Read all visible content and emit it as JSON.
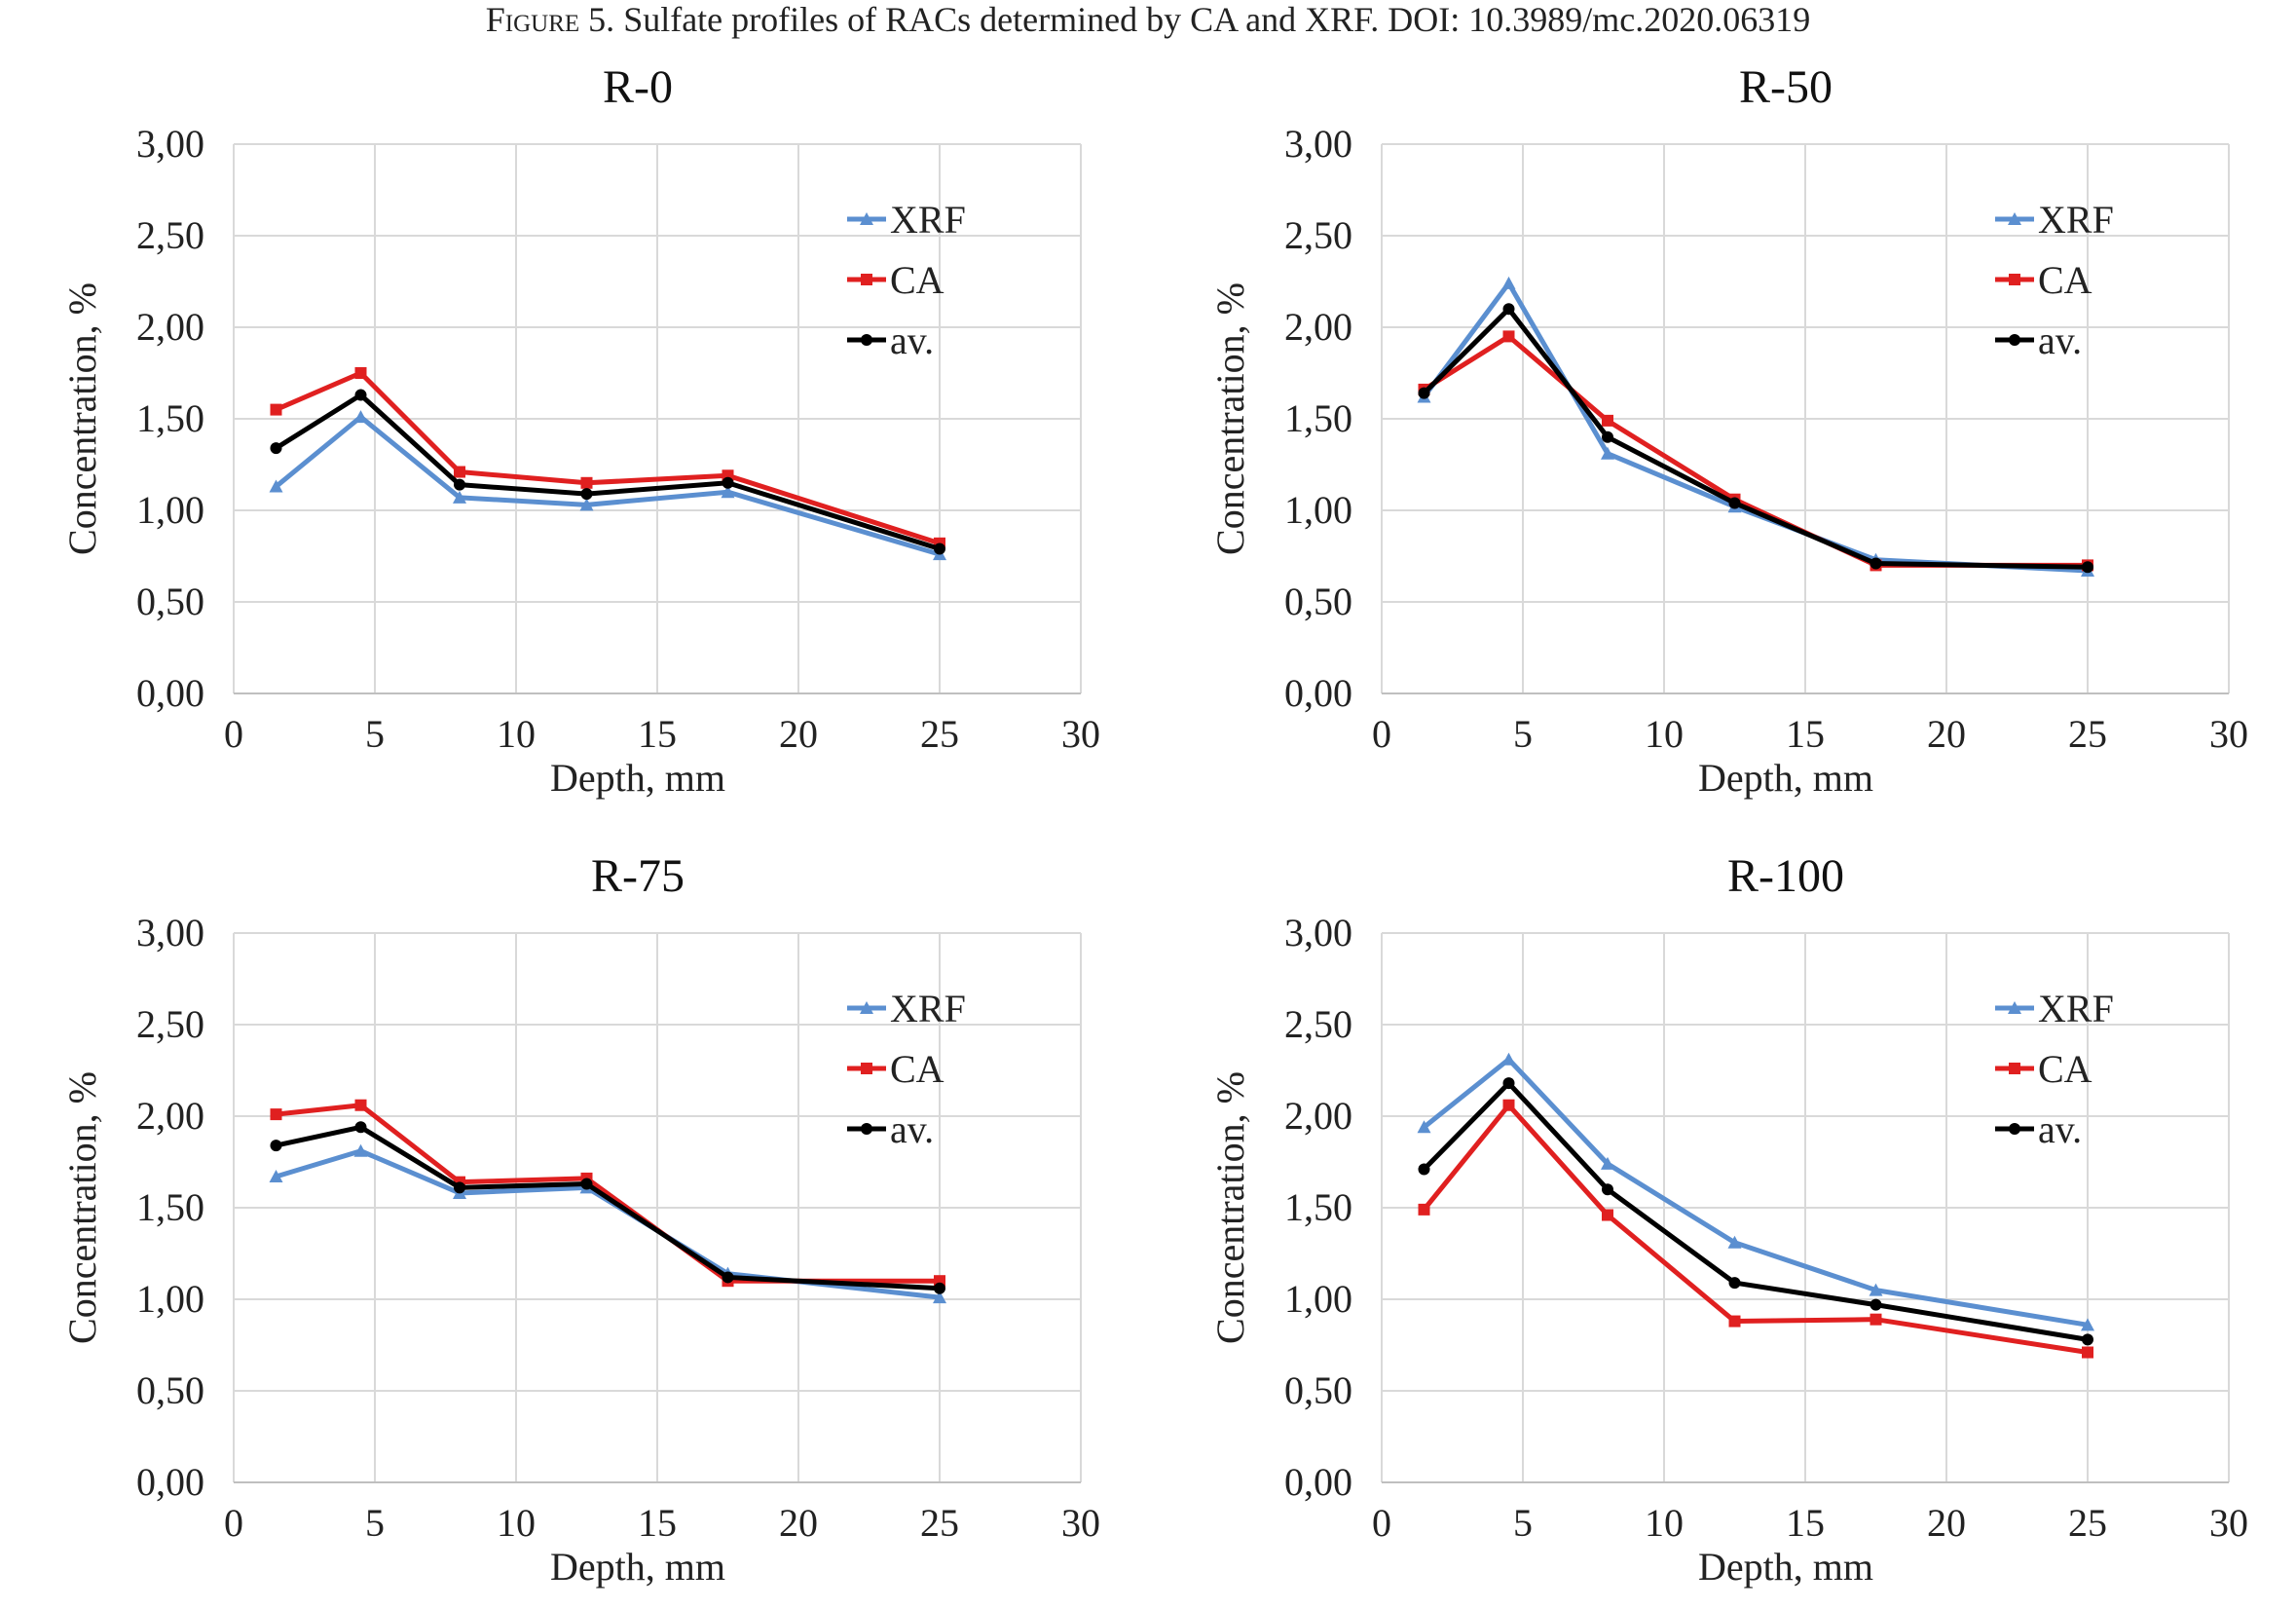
{
  "caption": {
    "label": "Figure 5.",
    "text": "Sulfate profiles of RACs determined by CA and XRF.  DOI: 10.3989/mc.2020.06319"
  },
  "colors": {
    "XRF": "#5b8fd0",
    "CA": "#e02020",
    "av": "#000000",
    "grid": "#d9d9d9"
  },
  "chart_data": [
    {
      "type": "line",
      "title": "R-0",
      "xlabel": "Depth, mm",
      "ylabel": "Concentration, %",
      "xlim": [
        0,
        30
      ],
      "ylim": [
        0,
        3
      ],
      "xticks": [
        "0",
        "5",
        "10",
        "15",
        "20",
        "25",
        "30"
      ],
      "yticks": [
        "0,00",
        "0,50",
        "1,00",
        "1,50",
        "2,00",
        "2,50",
        "3,00"
      ],
      "grid": true,
      "legend": "top-right",
      "x": [
        1.5,
        4.5,
        8,
        12.5,
        17.5,
        25
      ],
      "series": [
        {
          "name": "XRF",
          "values": [
            1.13,
            1.51,
            1.07,
            1.03,
            1.1,
            0.76
          ]
        },
        {
          "name": "CA",
          "values": [
            1.55,
            1.75,
            1.21,
            1.15,
            1.19,
            0.82
          ]
        },
        {
          "name": "av.",
          "values": [
            1.34,
            1.63,
            1.14,
            1.09,
            1.15,
            0.79
          ]
        }
      ]
    },
    {
      "type": "line",
      "title": "R-50",
      "xlabel": "Depth, mm",
      "ylabel": "Concentration, %",
      "xlim": [
        0,
        30
      ],
      "ylim": [
        0,
        3
      ],
      "xticks": [
        "0",
        "5",
        "10",
        "15",
        "20",
        "25",
        "30"
      ],
      "yticks": [
        "0,00",
        "0,50",
        "1,00",
        "1,50",
        "2,00",
        "2,50",
        "3,00"
      ],
      "grid": true,
      "legend": "top-right",
      "x": [
        1.5,
        4.5,
        8,
        12.5,
        17.5,
        25
      ],
      "series": [
        {
          "name": "XRF",
          "values": [
            1.62,
            2.24,
            1.31,
            1.02,
            0.73,
            0.67
          ]
        },
        {
          "name": "CA",
          "values": [
            1.66,
            1.95,
            1.49,
            1.06,
            0.7,
            0.7
          ]
        },
        {
          "name": "av.",
          "values": [
            1.64,
            2.1,
            1.4,
            1.04,
            0.71,
            0.69
          ]
        }
      ]
    },
    {
      "type": "line",
      "title": "R-75",
      "xlabel": "Depth, mm",
      "ylabel": "Concentration, %",
      "xlim": [
        0,
        30
      ],
      "ylim": [
        0,
        3
      ],
      "xticks": [
        "0",
        "5",
        "10",
        "15",
        "20",
        "25",
        "30"
      ],
      "yticks": [
        "0,00",
        "0,50",
        "1,00",
        "1,50",
        "2,00",
        "2,50",
        "3,00"
      ],
      "grid": true,
      "legend": "top-right",
      "x": [
        1.5,
        4.5,
        8,
        12.5,
        17.5,
        25
      ],
      "series": [
        {
          "name": "XRF",
          "values": [
            1.67,
            1.81,
            1.58,
            1.61,
            1.14,
            1.01
          ]
        },
        {
          "name": "CA",
          "values": [
            2.01,
            2.06,
            1.64,
            1.66,
            1.1,
            1.1
          ]
        },
        {
          "name": "av.",
          "values": [
            1.84,
            1.94,
            1.61,
            1.63,
            1.12,
            1.06
          ]
        }
      ]
    },
    {
      "type": "line",
      "title": "R-100",
      "xlabel": "Depth, mm",
      "ylabel": "Concentration, %",
      "xlim": [
        0,
        30
      ],
      "ylim": [
        0,
        3
      ],
      "xticks": [
        "0",
        "5",
        "10",
        "15",
        "20",
        "25",
        "30"
      ],
      "yticks": [
        "0,00",
        "0,50",
        "1,00",
        "1,50",
        "2,00",
        "2,50",
        "3,00"
      ],
      "grid": true,
      "legend": "top-right",
      "x": [
        1.5,
        4.5,
        8,
        12.5,
        17.5,
        25
      ],
      "series": [
        {
          "name": "XRF",
          "values": [
            1.94,
            2.31,
            1.74,
            1.31,
            1.05,
            0.86
          ]
        },
        {
          "name": "CA",
          "values": [
            1.49,
            2.06,
            1.46,
            0.88,
            0.89,
            0.71
          ]
        },
        {
          "name": "av.",
          "values": [
            1.71,
            2.18,
            1.6,
            1.09,
            0.97,
            0.78
          ]
        }
      ]
    }
  ]
}
